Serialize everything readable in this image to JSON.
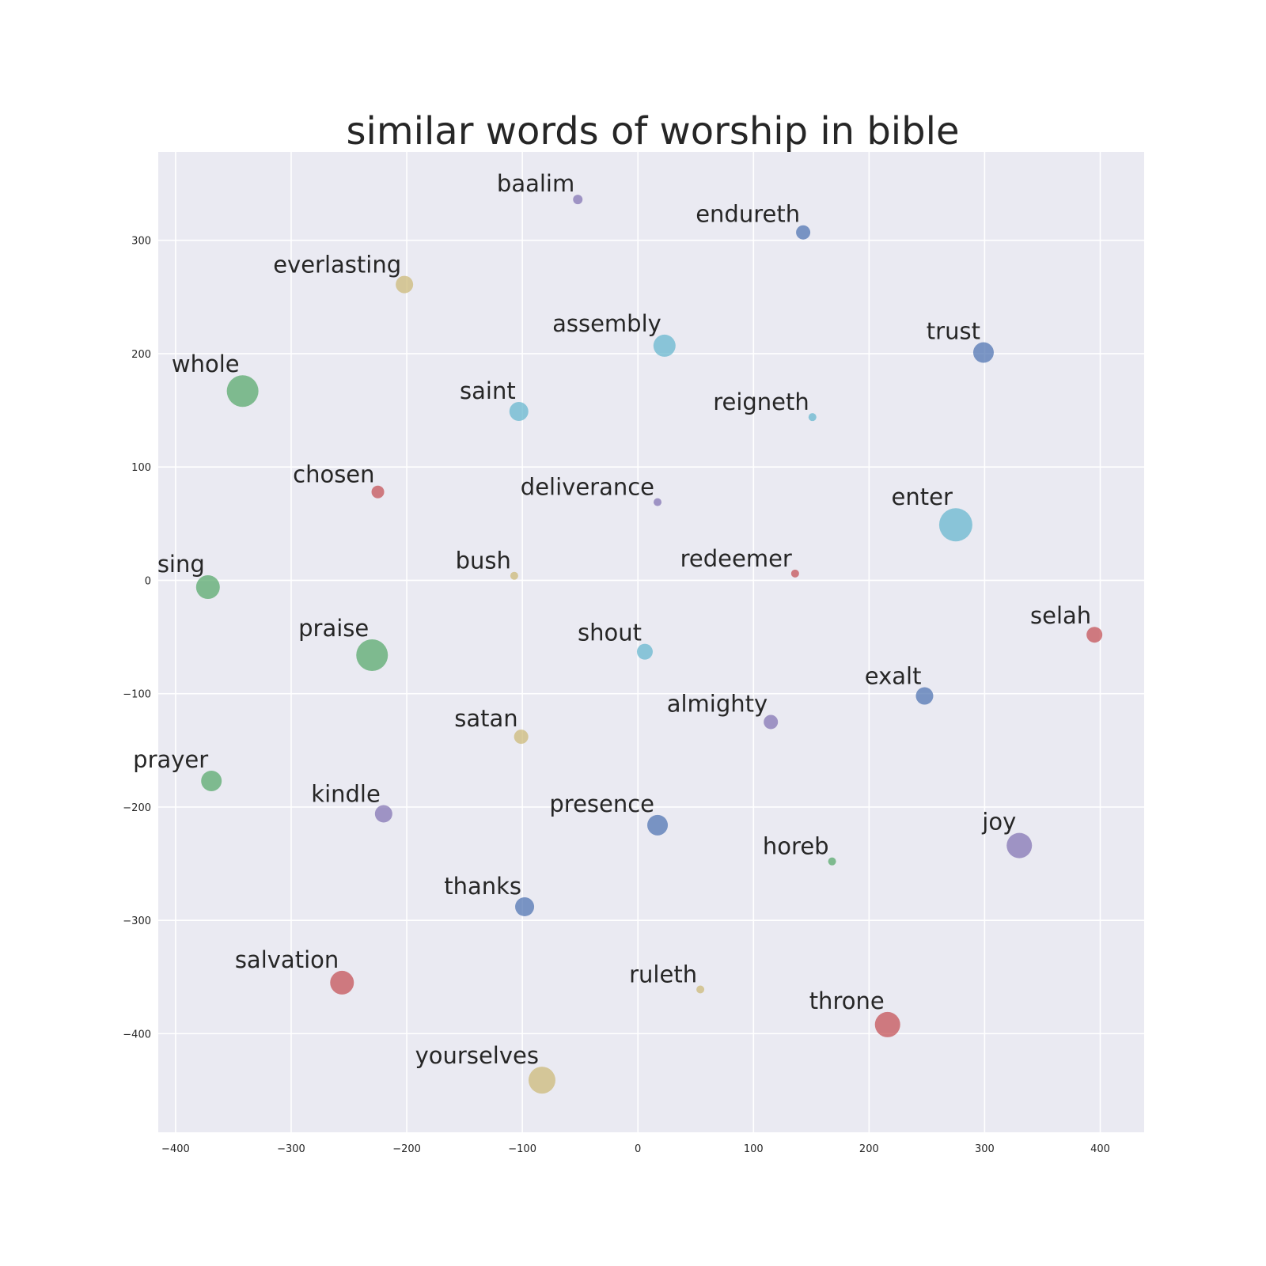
{
  "chart_data": {
    "type": "scatter",
    "title": "similar words of worship in bible",
    "xlabel": "",
    "ylabel": "",
    "xlim": [
      -415,
      438
    ],
    "ylim": [
      -487,
      378
    ],
    "xticks": [
      -400,
      -300,
      -200,
      -100,
      0,
      100,
      200,
      300,
      400
    ],
    "yticks": [
      300,
      200,
      100,
      0,
      -100,
      -200,
      -300,
      -400
    ],
    "xtick_labels": [
      "−400",
      "−300",
      "−200",
      "−100",
      "0",
      "100",
      "200",
      "300",
      "400"
    ],
    "ytick_labels": [
      "300",
      "200",
      "100",
      "0",
      "−100",
      "−200",
      "−300",
      "−400"
    ],
    "grid": true,
    "colors": {
      "blue": "#4c72b0",
      "green": "#55a868",
      "red": "#c44e52",
      "purple": "#8172b2",
      "yellow": "#ccb974",
      "cyan": "#64b5cd",
      "background": "#eaeaf2",
      "grid": "#ffffff"
    },
    "points": [
      {
        "label": "baalim",
        "x": -52,
        "y": 336,
        "size": 6,
        "color": "purple"
      },
      {
        "label": "endureth",
        "x": 143,
        "y": 307,
        "size": 9,
        "color": "blue"
      },
      {
        "label": "everlasting",
        "x": -202,
        "y": 261,
        "size": 11,
        "color": "yellow"
      },
      {
        "label": "assembly",
        "x": 23,
        "y": 207,
        "size": 14,
        "color": "cyan"
      },
      {
        "label": "trust",
        "x": 299,
        "y": 201,
        "size": 13,
        "color": "blue"
      },
      {
        "label": "whole",
        "x": -342,
        "y": 167,
        "size": 20,
        "color": "green"
      },
      {
        "label": "saint",
        "x": -103,
        "y": 149,
        "size": 12,
        "color": "cyan"
      },
      {
        "label": "reigneth",
        "x": 151,
        "y": 144,
        "size": 5,
        "color": "cyan"
      },
      {
        "label": "chosen",
        "x": -225,
        "y": 78,
        "size": 8,
        "color": "red"
      },
      {
        "label": "deliverance",
        "x": 17,
        "y": 69,
        "size": 5,
        "color": "purple"
      },
      {
        "label": "enter",
        "x": 275,
        "y": 49,
        "size": 21,
        "color": "cyan"
      },
      {
        "label": "bush",
        "x": -107,
        "y": 4,
        "size": 5,
        "color": "yellow"
      },
      {
        "label": "redeemer",
        "x": 136,
        "y": 6,
        "size": 5,
        "color": "red"
      },
      {
        "label": "sing",
        "x": -372,
        "y": -6,
        "size": 15,
        "color": "green"
      },
      {
        "label": "selah",
        "x": 395,
        "y": -48,
        "size": 10,
        "color": "red"
      },
      {
        "label": "praise",
        "x": -230,
        "y": -66,
        "size": 20,
        "color": "green"
      },
      {
        "label": "shout",
        "x": 6,
        "y": -63,
        "size": 10,
        "color": "cyan"
      },
      {
        "label": "exalt",
        "x": 248,
        "y": -102,
        "size": 11,
        "color": "blue"
      },
      {
        "label": "almighty",
        "x": 115,
        "y": -125,
        "size": 9,
        "color": "purple"
      },
      {
        "label": "satan",
        "x": -101,
        "y": -138,
        "size": 9,
        "color": "yellow"
      },
      {
        "label": "prayer",
        "x": -369,
        "y": -177,
        "size": 13,
        "color": "green"
      },
      {
        "label": "kindle",
        "x": -220,
        "y": -206,
        "size": 11,
        "color": "purple"
      },
      {
        "label": "presence",
        "x": 17,
        "y": -216,
        "size": 13,
        "color": "blue"
      },
      {
        "label": "joy",
        "x": 330,
        "y": -234,
        "size": 16,
        "color": "purple"
      },
      {
        "label": "horeb",
        "x": 168,
        "y": -248,
        "size": 5,
        "color": "green"
      },
      {
        "label": "thanks",
        "x": -98,
        "y": -288,
        "size": 12,
        "color": "blue"
      },
      {
        "label": "salvation",
        "x": -256,
        "y": -355,
        "size": 15,
        "color": "red"
      },
      {
        "label": "ruleth",
        "x": 54,
        "y": -361,
        "size": 5,
        "color": "yellow"
      },
      {
        "label": "throne",
        "x": 216,
        "y": -392,
        "size": 16,
        "color": "red"
      },
      {
        "label": "yourselves",
        "x": -83,
        "y": -441,
        "size": 17,
        "color": "yellow"
      }
    ]
  }
}
